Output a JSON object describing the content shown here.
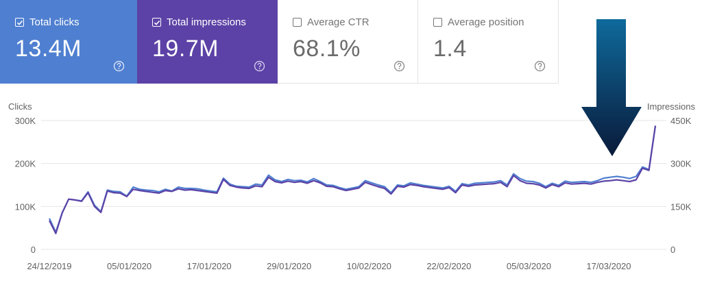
{
  "metrics": [
    {
      "label": "Total clicks",
      "value": "13.4M",
      "checked": true,
      "icon": "help-circle-icon"
    },
    {
      "label": "Total impressions",
      "value": "19.7M",
      "checked": true,
      "icon": "help-circle-icon"
    },
    {
      "label": "Average CTR",
      "value": "68.1%",
      "checked": false,
      "icon": "help-circle-icon"
    },
    {
      "label": "Average position",
      "value": "1.4",
      "checked": false,
      "icon": "help-circle-icon"
    }
  ],
  "colors": {
    "clicks": "#4f7fd0",
    "impressions": "#5c42a6",
    "arrow_top": "#0e6a9b",
    "arrow_bottom": "#0a1a3a"
  },
  "annotation": {
    "type": "down-arrow",
    "color": "#0b2a55"
  },
  "chart_data": {
    "type": "line",
    "ylabel_left": "Clicks",
    "ylabel_right": "Impressions",
    "y_left_ticks": [
      "0",
      "100K",
      "200K",
      "300K"
    ],
    "y_right_ticks": [
      "0",
      "150K",
      "300K",
      "450K"
    ],
    "y_left_range": [
      0,
      300000
    ],
    "y_right_range": [
      0,
      450000
    ],
    "x_tick_labels": [
      "24/12/2019",
      "05/01/2020",
      "17/01/2020",
      "29/01/2020",
      "10/02/2020",
      "22/02/2020",
      "05/03/2020",
      "17/03/2020"
    ],
    "x_start": "2019-12-24",
    "x_end": "2020-03-24",
    "grid": true,
    "series": [
      {
        "axis": "left",
        "values": [
          72000,
          40000,
          86000,
          117000,
          115000,
          113000,
          134000,
          103000,
          88000,
          138000,
          135000,
          134000,
          124000,
          145000,
          140000,
          138000,
          137000,
          134000,
          140000,
          136000,
          145000,
          142000,
          142000,
          141000,
          138000,
          136000,
          134000,
          166000,
          152000,
          147000,
          146000,
          145000,
          152000,
          150000,
          173000,
          162000,
          158000,
          163000,
          160000,
          161000,
          157000,
          165000,
          158000,
          150000,
          149000,
          144000,
          140000,
          143000,
          146000,
          160000,
          155000,
          150000,
          146000,
          132000,
          150000,
          148000,
          155000,
          152000,
          149000,
          147000,
          145000,
          143000,
          147000,
          135000,
          153000,
          150000,
          154000,
          155000,
          156000,
          157000,
          160000,
          150000,
          176000,
          165000,
          159000,
          158000,
          154000,
          146000,
          154000,
          149000,
          159000,
          156000,
          157000,
          158000,
          156000,
          160000,
          166000,
          168000,
          170000,
          168000,
          165000,
          170000,
          192000,
          186000,
          288000
        ]
      },
      {
        "axis": "right",
        "values": [
          100500,
          55500,
          127500,
          175500,
          172500,
          168000,
          198000,
          150000,
          129000,
          204000,
          198000,
          196500,
          184500,
          210000,
          205500,
          202500,
          199500,
          196500,
          205500,
          202500,
          211500,
          207000,
          208500,
          205500,
          202500,
          199500,
          196500,
          244500,
          223500,
          217500,
          214500,
          213000,
          222000,
          219000,
          252000,
          237000,
          232500,
          238500,
          234000,
          237000,
          231000,
          240000,
          232500,
          220500,
          219000,
          211500,
          205500,
          210000,
          214500,
          234000,
          226500,
          219000,
          213000,
          193500,
          220500,
          217500,
          226500,
          223500,
          219000,
          216000,
          213000,
          210000,
          216000,
          198000,
          225000,
          220500,
          225000,
          226500,
          228000,
          229500,
          234000,
          219000,
          258000,
          240000,
          231000,
          229500,
          225000,
          214500,
          226500,
          219000,
          232500,
          228000,
          229500,
          231000,
          228000,
          234000,
          238500,
          240000,
          243000,
          240000,
          237000,
          243000,
          283500,
          276000,
          432000
        ]
      }
    ]
  }
}
